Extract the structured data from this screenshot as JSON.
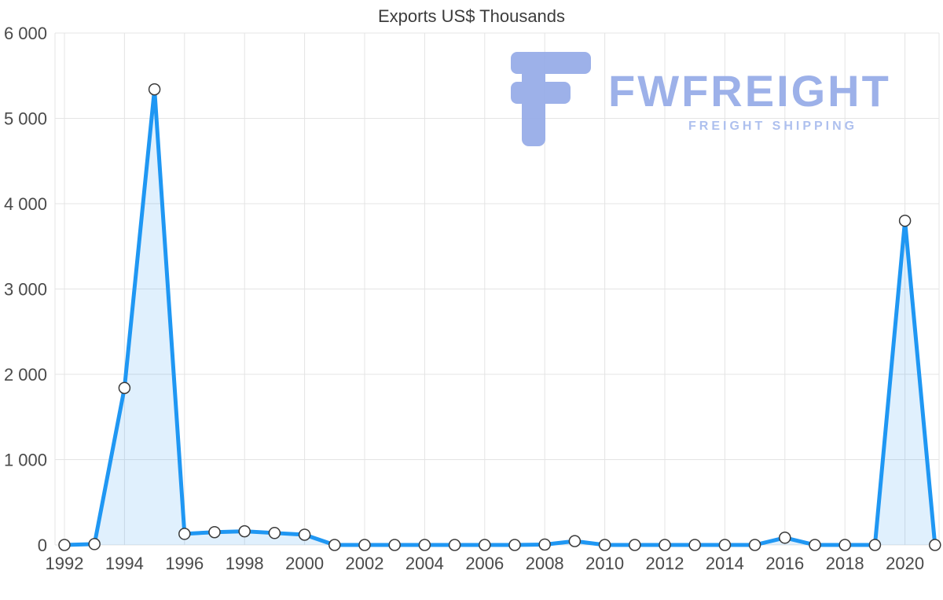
{
  "title": "Exports US$ Thousands",
  "watermark": {
    "brand": "FWFREIGHT",
    "tagline": "FREIGHT SHIPPING",
    "icon_color": "#98ade8",
    "tagline_color": "#aabdee"
  },
  "chart_data": {
    "type": "area",
    "title": "Exports US$ Thousands",
    "xlabel": "",
    "ylabel": "",
    "x": [
      1992,
      1993,
      1994,
      1995,
      1996,
      1997,
      1998,
      1999,
      2000,
      2001,
      2002,
      2003,
      2004,
      2005,
      2006,
      2007,
      2008,
      2009,
      2010,
      2011,
      2012,
      2013,
      2014,
      2015,
      2016,
      2017,
      2018,
      2019,
      2020,
      2021
    ],
    "values": [
      0,
      10,
      1840,
      5340,
      130,
      150,
      160,
      140,
      120,
      0,
      0,
      0,
      0,
      0,
      0,
      0,
      5,
      45,
      0,
      0,
      0,
      0,
      0,
      0,
      85,
      0,
      0,
      0,
      3800,
      0
    ],
    "ylim": [
      0,
      6000
    ],
    "y_ticks": [
      0,
      1000,
      2000,
      3000,
      4000,
      5000,
      6000
    ],
    "x_ticks": [
      1992,
      1994,
      1996,
      1998,
      2000,
      2002,
      2004,
      2006,
      2008,
      2010,
      2012,
      2014,
      2016,
      2018,
      2020
    ],
    "grid": true,
    "legend": "none",
    "line_color": "#1f97f3",
    "fill_color": "rgba(33, 150, 243, 0.14)",
    "marker_fill": "#ffffff",
    "marker_stroke": "#3a3a3a",
    "grid_color": "#e4e4e4",
    "tick_label_color": "#4a4a4a"
  }
}
